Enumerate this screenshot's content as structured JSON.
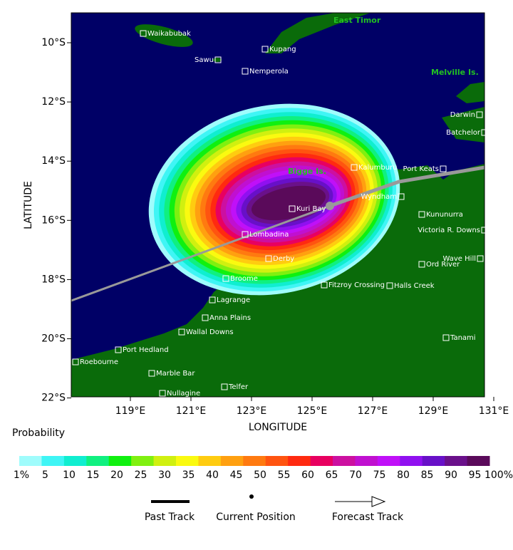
{
  "map": {
    "axis_labels": {
      "y": "LATITUDE",
      "x": "LONGITUDE"
    },
    "lat_ticks": [
      "10°S",
      "12°S",
      "14°S",
      "16°S",
      "18°S",
      "20°S",
      "22°S"
    ],
    "lon_ticks": [
      "119°E",
      "121°E",
      "123°E",
      "125°E",
      "127°E",
      "129°E",
      "131°E"
    ],
    "regions": [
      "East Timor",
      "Melville Is.",
      "Bigge Is."
    ],
    "places": [
      "Waikabubak",
      "Kupang",
      "Sawu",
      "Nemperola",
      "Darwin",
      "Batchelor",
      "Kalumburu",
      "Port Keats",
      "Wyndham",
      "Kuri Bay",
      "Kununurra",
      "Victoria R. Downs",
      "Lombadina",
      "Derby",
      "Wave Hill",
      "Ord River",
      "Broome",
      "Fitzroy Crossing",
      "Halls Creek",
      "Lagrange",
      "Anna Plains",
      "Wallal Downs",
      "Tanami",
      "Port Hedland",
      "Roebourne",
      "Marble Bar",
      "Telfer",
      "Nullagine"
    ]
  },
  "legend": {
    "title": "Probability",
    "labels": [
      "1%",
      "5",
      "10",
      "15",
      "20",
      "25",
      "30",
      "35",
      "40",
      "45",
      "50",
      "55",
      "60",
      "65",
      "70",
      "75",
      "80",
      "85",
      "90",
      "95",
      "100%"
    ],
    "colors": [
      "#9ffcfc",
      "#3ff5f5",
      "#10eed0",
      "#10f080",
      "#10f010",
      "#80f010",
      "#d0f010",
      "#fafa10",
      "#ffcc10",
      "#ffa010",
      "#ff7a10",
      "#ff5410",
      "#ff2a10",
      "#e80060",
      "#cc10a0",
      "#c010d0",
      "#c010f8",
      "#9010f0",
      "#6810c8",
      "#6a108a",
      "#5a0a5a"
    ],
    "track": [
      "Past Track",
      "Current Position",
      "Forecast Track"
    ]
  }
}
